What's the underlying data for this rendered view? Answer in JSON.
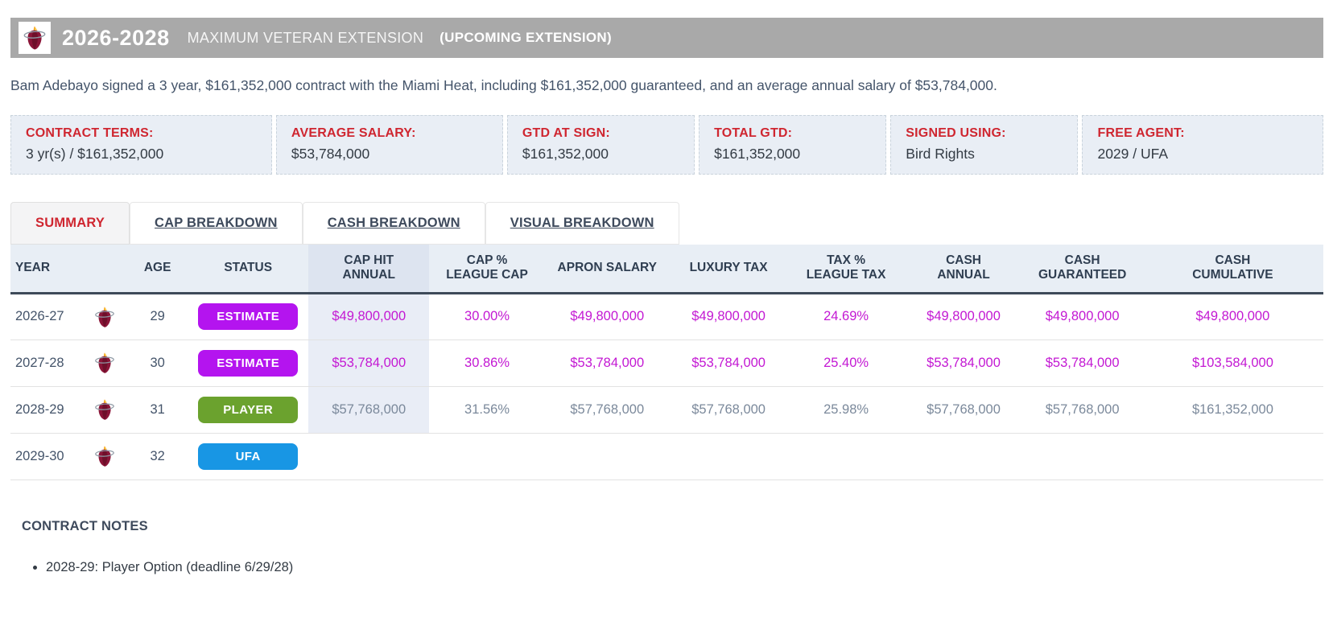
{
  "header": {
    "title": "2026-2028",
    "subtitle": "MAXIMUM VETERAN EXTENSION",
    "tag": "(UPCOMING EXTENSION)",
    "team_logo": "miami-heat-logo"
  },
  "description": "Bam Adebayo signed a 3 year, $161,352,000 contract with the Miami Heat, including $161,352,000 guaranteed, and an average annual salary of $53,784,000.",
  "terms": [
    {
      "label": "CONTRACT TERMS:",
      "value": "3 yr(s) / $161,352,000",
      "flex": "1.47"
    },
    {
      "label": "AVERAGE SALARY:",
      "value": "$53,784,000",
      "flex": "1.25"
    },
    {
      "label": "GTD AT SIGN:",
      "value": "$161,352,000",
      "flex": "1"
    },
    {
      "label": "TOTAL GTD:",
      "value": "$161,352,000",
      "flex": "1"
    },
    {
      "label": "SIGNED USING:",
      "value": "Bird Rights",
      "flex": "1"
    },
    {
      "label": "FREE AGENT:",
      "value": "2029 / UFA",
      "flex": "1.34"
    }
  ],
  "tabs": [
    {
      "label": "SUMMARY",
      "active": true
    },
    {
      "label": "CAP BREAKDOWN",
      "active": false
    },
    {
      "label": "CASH BREAKDOWN",
      "active": false
    },
    {
      "label": "VISUAL BREAKDOWN",
      "active": false
    }
  ],
  "table": {
    "columns": [
      {
        "lines": [
          "YEAR"
        ],
        "width": "5.5%",
        "key": "year"
      },
      {
        "lines": [
          ""
        ],
        "width": "3.4%",
        "key": "logo"
      },
      {
        "lines": [
          "AGE"
        ],
        "width": "4.6%",
        "key": "age"
      },
      {
        "lines": [
          "STATUS"
        ],
        "width": "9.2%",
        "key": "status"
      },
      {
        "lines": [
          "CAP HIT",
          "ANNUAL"
        ],
        "width": "9.2%",
        "key": "caphit"
      },
      {
        "lines": [
          "CAP %",
          "LEAGUE CAP"
        ],
        "width": "8.8%",
        "key": "cappct"
      },
      {
        "lines": [
          "APRON SALARY"
        ],
        "width": "9.5%",
        "key": "apron"
      },
      {
        "lines": [
          "LUXURY TAX"
        ],
        "width": "9.0%",
        "key": "luxury"
      },
      {
        "lines": [
          "TAX %",
          "LEAGUE TAX"
        ],
        "width": "8.9%",
        "key": "taxpct"
      },
      {
        "lines": [
          "CASH",
          "ANNUAL"
        ],
        "width": "9.0%",
        "key": "cashannual"
      },
      {
        "lines": [
          "CASH",
          "GUARANTEED"
        ],
        "width": "9.1%",
        "key": "cashgtd"
      },
      {
        "lines": [
          "CASH",
          "CUMULATIVE"
        ],
        "width": "13.8%",
        "key": "cashcum"
      }
    ],
    "rows": [
      {
        "year": "2026-27",
        "age": "29",
        "status": {
          "label": "ESTIMATE",
          "color": "#b414ef"
        },
        "value_color": "magenta",
        "values": [
          "$49,800,000",
          "30.00%",
          "$49,800,000",
          "$49,800,000",
          "24.69%",
          "$49,800,000",
          "$49,800,000",
          "$49,800,000"
        ]
      },
      {
        "year": "2027-28",
        "age": "30",
        "status": {
          "label": "ESTIMATE",
          "color": "#b414ef"
        },
        "value_color": "magenta",
        "values": [
          "$53,784,000",
          "30.86%",
          "$53,784,000",
          "$53,784,000",
          "25.40%",
          "$53,784,000",
          "$53,784,000",
          "$103,584,000"
        ]
      },
      {
        "year": "2028-29",
        "age": "31",
        "status": {
          "label": "PLAYER",
          "color": "#6ba22e"
        },
        "value_color": "gray",
        "values": [
          "$57,768,000",
          "31.56%",
          "$57,768,000",
          "$57,768,000",
          "25.98%",
          "$57,768,000",
          "$57,768,000",
          "$161,352,000"
        ]
      },
      {
        "year": "2029-30",
        "age": "32",
        "status": {
          "label": "UFA",
          "color": "#1896e4"
        },
        "value_color": "gray",
        "values": [
          "",
          "",
          "",
          "",
          "",
          "",
          "",
          ""
        ]
      }
    ]
  },
  "notes": {
    "heading": "CONTRACT NOTES",
    "items": [
      "2028-29: Player Option (deadline 6/29/28)"
    ]
  },
  "colors": {
    "title_bar": "#a9a9a9",
    "accent_red": "#cf2630",
    "magenta_value": "#c318d3",
    "badge_estimate": "#b414ef",
    "badge_player": "#6ba22e",
    "badge_ufa": "#1896e4",
    "header_bg": "#e8eef5",
    "caphit_col_bg": "#dde4f0",
    "gray_value": "#7b899b"
  }
}
